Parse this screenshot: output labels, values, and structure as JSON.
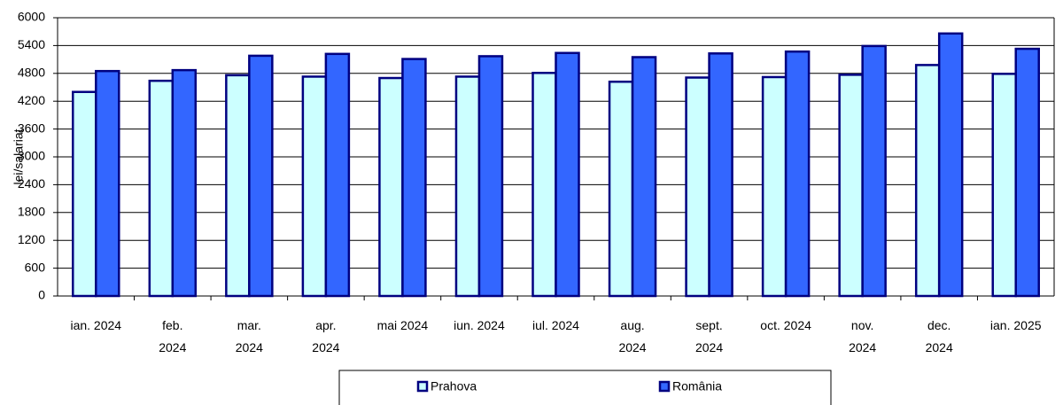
{
  "chart_data": {
    "type": "bar",
    "y_label": "lei/salariat",
    "categories": [
      "ian. 2024",
      "feb.\n2024",
      "mar.\n2024",
      "apr.\n2024",
      "mai 2024",
      "iun. 2024",
      "iul. 2024",
      "aug.\n2024",
      "sept.\n2024",
      "oct. 2024",
      "nov.\n2024",
      "dec.\n2024",
      "ian. 2025"
    ],
    "series": [
      {
        "name": "Prahova",
        "color": "#ccffff",
        "values": [
          4400,
          4640,
          4760,
          4730,
          4700,
          4730,
          4810,
          4620,
          4710,
          4720,
          4770,
          4980,
          4790
        ]
      },
      {
        "name": "România",
        "color": "#3366ff",
        "values": [
          4850,
          4870,
          5180,
          5220,
          5110,
          5170,
          5240,
          5150,
          5230,
          5270,
          5390,
          5660,
          5330
        ]
      }
    ],
    "ylim": [
      0,
      6000
    ],
    "yticks": [
      0,
      600,
      1200,
      1800,
      2400,
      3000,
      3600,
      4200,
      4800,
      5400,
      6000
    ],
    "grid": true,
    "legend": "bottom"
  }
}
